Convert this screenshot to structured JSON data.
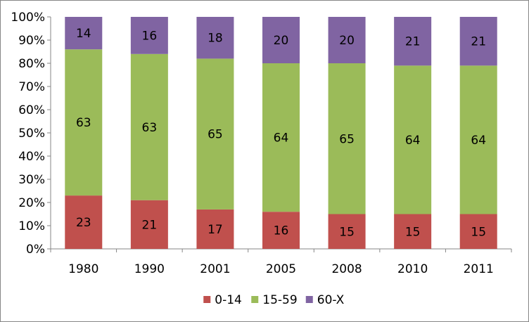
{
  "chart_data": {
    "type": "bar",
    "stacked": true,
    "percent_stacked": true,
    "categories": [
      "1980",
      "1990",
      "2001",
      "2005",
      "2008",
      "2010",
      "2011"
    ],
    "series": [
      {
        "name": "0-14",
        "color": "#c0504d",
        "values": [
          23,
          21,
          17,
          16,
          15,
          15,
          15
        ]
      },
      {
        "name": "15-59",
        "color": "#9bbb59",
        "values": [
          63,
          63,
          65,
          64,
          65,
          64,
          64
        ]
      },
      {
        "name": "60-X",
        "color": "#8064a2",
        "values": [
          14,
          16,
          18,
          20,
          20,
          21,
          21
        ]
      }
    ],
    "ylim": [
      0,
      100
    ],
    "yticks": [
      "0%",
      "10%",
      "20%",
      "30%",
      "40%",
      "50%",
      "60%",
      "70%",
      "80%",
      "90%",
      "100%"
    ],
    "grid": false,
    "legend": "bottom",
    "title": "",
    "xlabel": "",
    "ylabel": ""
  }
}
